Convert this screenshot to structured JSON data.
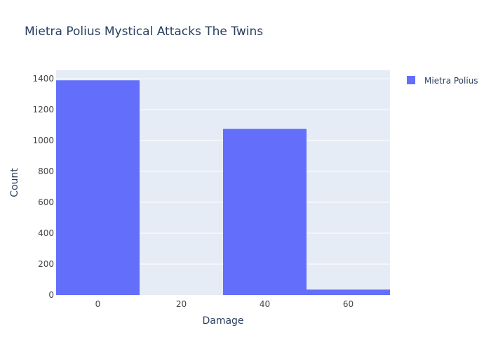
{
  "chart_data": {
    "type": "bar",
    "subtype": "histogram",
    "title": "Mietra Polius Mystical Attacks The Twins",
    "xlabel": "Damage",
    "ylabel": "Count",
    "x_ticks": [
      0,
      20,
      40,
      60
    ],
    "y_ticks": [
      0,
      200,
      400,
      600,
      800,
      1000,
      1200,
      1400
    ],
    "y_tick_labels": [
      "0",
      "200",
      "400",
      "600",
      "800",
      "1000",
      "1200",
      "1400"
    ],
    "xlim": [
      -10,
      70
    ],
    "ylim": [
      0,
      1455
    ],
    "bin_width": 20,
    "series": [
      {
        "name": "Mietra Polius",
        "color": "#636efa",
        "bins": [
          {
            "x0": -10,
            "x1": 10,
            "value": 1390
          },
          {
            "x0": 10,
            "x1": 30,
            "value": 0
          },
          {
            "x0": 30,
            "x1": 50,
            "value": 1075
          },
          {
            "x0": 50,
            "x1": 70,
            "value": 35
          }
        ]
      }
    ],
    "legend": {
      "placement": "top-right"
    },
    "grid": true,
    "colors": {
      "plot_background": "#e5ecf6",
      "grid": "#ffffff",
      "text": "#2a3f5f",
      "tick_text": "#444444"
    }
  }
}
